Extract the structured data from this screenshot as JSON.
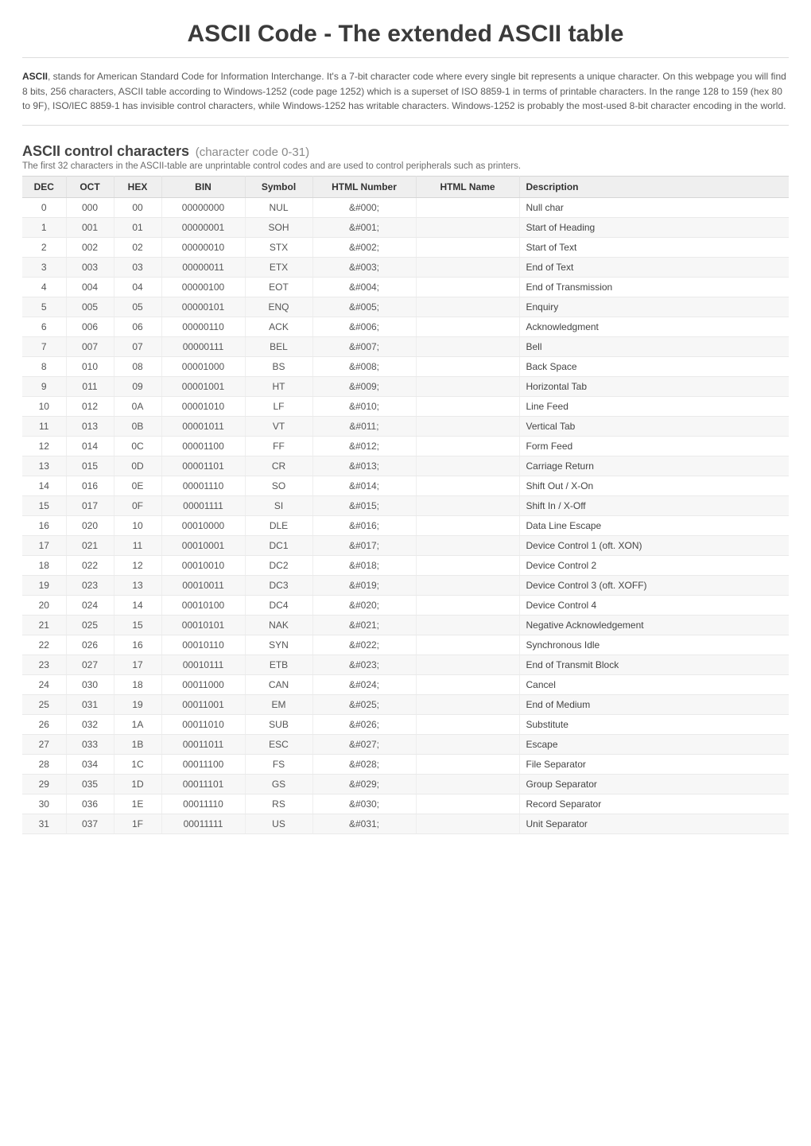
{
  "page": {
    "title": "ASCII Code - The extended ASCII table",
    "intro_bold": "ASCII",
    "intro_rest": ", stands for American Standard Code for Information Interchange. It's a 7-bit character code where every single bit represents a unique character. On this webpage you will find 8 bits, 256 characters, ASCII table according to Windows-1252 (code page 1252) which is a superset of ISO 8859-1 in terms of printable characters. In the range 128 to 159 (hex 80 to 9F), ISO/IEC 8859-1 has invisible control characters, while Windows-1252 has writable characters. Windows-1252 is probably the most-used 8-bit character encoding in the world."
  },
  "section": {
    "title": "ASCII control characters",
    "subtitle": "(character code 0-31)",
    "description": "The first 32 characters in the ASCII-table are unprintable control codes and are used to control peripherals such as printers."
  },
  "columns": [
    "DEC",
    "OCT",
    "HEX",
    "BIN",
    "Symbol",
    "HTML Number",
    "HTML Name",
    "Description"
  ],
  "rows": [
    {
      "dec": "0",
      "oct": "000",
      "hex": "00",
      "bin": "00000000",
      "sym": "NUL",
      "hnum": "&#000;",
      "hname": "",
      "desc": "Null char"
    },
    {
      "dec": "1",
      "oct": "001",
      "hex": "01",
      "bin": "00000001",
      "sym": "SOH",
      "hnum": "&#001;",
      "hname": "",
      "desc": "Start of Heading"
    },
    {
      "dec": "2",
      "oct": "002",
      "hex": "02",
      "bin": "00000010",
      "sym": "STX",
      "hnum": "&#002;",
      "hname": "",
      "desc": "Start of Text"
    },
    {
      "dec": "3",
      "oct": "003",
      "hex": "03",
      "bin": "00000011",
      "sym": "ETX",
      "hnum": "&#003;",
      "hname": "",
      "desc": "End of Text"
    },
    {
      "dec": "4",
      "oct": "004",
      "hex": "04",
      "bin": "00000100",
      "sym": "EOT",
      "hnum": "&#004;",
      "hname": "",
      "desc": "End of Transmission"
    },
    {
      "dec": "5",
      "oct": "005",
      "hex": "05",
      "bin": "00000101",
      "sym": "ENQ",
      "hnum": "&#005;",
      "hname": "",
      "desc": "Enquiry"
    },
    {
      "dec": "6",
      "oct": "006",
      "hex": "06",
      "bin": "00000110",
      "sym": "ACK",
      "hnum": "&#006;",
      "hname": "",
      "desc": "Acknowledgment"
    },
    {
      "dec": "7",
      "oct": "007",
      "hex": "07",
      "bin": "00000111",
      "sym": "BEL",
      "hnum": "&#007;",
      "hname": "",
      "desc": "Bell"
    },
    {
      "dec": "8",
      "oct": "010",
      "hex": "08",
      "bin": "00001000",
      "sym": "BS",
      "hnum": "&#008;",
      "hname": "",
      "desc": "Back Space"
    },
    {
      "dec": "9",
      "oct": "011",
      "hex": "09",
      "bin": "00001001",
      "sym": "HT",
      "hnum": "&#009;",
      "hname": "",
      "desc": "Horizontal Tab"
    },
    {
      "dec": "10",
      "oct": "012",
      "hex": "0A",
      "bin": "00001010",
      "sym": "LF",
      "hnum": "&#010;",
      "hname": "",
      "desc": "Line Feed"
    },
    {
      "dec": "11",
      "oct": "013",
      "hex": "0B",
      "bin": "00001011",
      "sym": "VT",
      "hnum": "&#011;",
      "hname": "",
      "desc": "Vertical Tab"
    },
    {
      "dec": "12",
      "oct": "014",
      "hex": "0C",
      "bin": "00001100",
      "sym": "FF",
      "hnum": "&#012;",
      "hname": "",
      "desc": "Form Feed"
    },
    {
      "dec": "13",
      "oct": "015",
      "hex": "0D",
      "bin": "00001101",
      "sym": "CR",
      "hnum": "&#013;",
      "hname": "",
      "desc": "Carriage Return"
    },
    {
      "dec": "14",
      "oct": "016",
      "hex": "0E",
      "bin": "00001110",
      "sym": "SO",
      "hnum": "&#014;",
      "hname": "",
      "desc": "Shift Out / X-On"
    },
    {
      "dec": "15",
      "oct": "017",
      "hex": "0F",
      "bin": "00001111",
      "sym": "SI",
      "hnum": "&#015;",
      "hname": "",
      "desc": "Shift In / X-Off"
    },
    {
      "dec": "16",
      "oct": "020",
      "hex": "10",
      "bin": "00010000",
      "sym": "DLE",
      "hnum": "&#016;",
      "hname": "",
      "desc": "Data Line Escape"
    },
    {
      "dec": "17",
      "oct": "021",
      "hex": "11",
      "bin": "00010001",
      "sym": "DC1",
      "hnum": "&#017;",
      "hname": "",
      "desc": "Device Control 1 (oft. XON)"
    },
    {
      "dec": "18",
      "oct": "022",
      "hex": "12",
      "bin": "00010010",
      "sym": "DC2",
      "hnum": "&#018;",
      "hname": "",
      "desc": "Device Control 2"
    },
    {
      "dec": "19",
      "oct": "023",
      "hex": "13",
      "bin": "00010011",
      "sym": "DC3",
      "hnum": "&#019;",
      "hname": "",
      "desc": "Device Control 3 (oft. XOFF)"
    },
    {
      "dec": "20",
      "oct": "024",
      "hex": "14",
      "bin": "00010100",
      "sym": "DC4",
      "hnum": "&#020;",
      "hname": "",
      "desc": "Device Control 4"
    },
    {
      "dec": "21",
      "oct": "025",
      "hex": "15",
      "bin": "00010101",
      "sym": "NAK",
      "hnum": "&#021;",
      "hname": "",
      "desc": "Negative Acknowledgement"
    },
    {
      "dec": "22",
      "oct": "026",
      "hex": "16",
      "bin": "00010110",
      "sym": "SYN",
      "hnum": "&#022;",
      "hname": "",
      "desc": "Synchronous Idle"
    },
    {
      "dec": "23",
      "oct": "027",
      "hex": "17",
      "bin": "00010111",
      "sym": "ETB",
      "hnum": "&#023;",
      "hname": "",
      "desc": "End of Transmit Block"
    },
    {
      "dec": "24",
      "oct": "030",
      "hex": "18",
      "bin": "00011000",
      "sym": "CAN",
      "hnum": "&#024;",
      "hname": "",
      "desc": "Cancel"
    },
    {
      "dec": "25",
      "oct": "031",
      "hex": "19",
      "bin": "00011001",
      "sym": "EM",
      "hnum": "&#025;",
      "hname": "",
      "desc": "End of Medium"
    },
    {
      "dec": "26",
      "oct": "032",
      "hex": "1A",
      "bin": "00011010",
      "sym": "SUB",
      "hnum": "&#026;",
      "hname": "",
      "desc": "Substitute"
    },
    {
      "dec": "27",
      "oct": "033",
      "hex": "1B",
      "bin": "00011011",
      "sym": "ESC",
      "hnum": "&#027;",
      "hname": "",
      "desc": "Escape"
    },
    {
      "dec": "28",
      "oct": "034",
      "hex": "1C",
      "bin": "00011100",
      "sym": "FS",
      "hnum": "&#028;",
      "hname": "",
      "desc": "File Separator"
    },
    {
      "dec": "29",
      "oct": "035",
      "hex": "1D",
      "bin": "00011101",
      "sym": "GS",
      "hnum": "&#029;",
      "hname": "",
      "desc": "Group Separator"
    },
    {
      "dec": "30",
      "oct": "036",
      "hex": "1E",
      "bin": "00011110",
      "sym": "RS",
      "hnum": "&#030;",
      "hname": "",
      "desc": "Record Separator"
    },
    {
      "dec": "31",
      "oct": "037",
      "hex": "1F",
      "bin": "00011111",
      "sym": "US",
      "hnum": "&#031;",
      "hname": "",
      "desc": "Unit Separator"
    }
  ],
  "style": {
    "type": "table",
    "background_color": "#ffffff",
    "header_background": "#efefef",
    "row_even_bg": "#f7f7f7",
    "row_odd_bg": "#ffffff",
    "border_color": "#eaeaea",
    "title_color": "#3b3b3b",
    "text_color": "#555555",
    "title_fontsize": 30,
    "body_fontsize": 12,
    "section_title_fontsize": 18,
    "section_sub_color": "#8a8a8a"
  }
}
